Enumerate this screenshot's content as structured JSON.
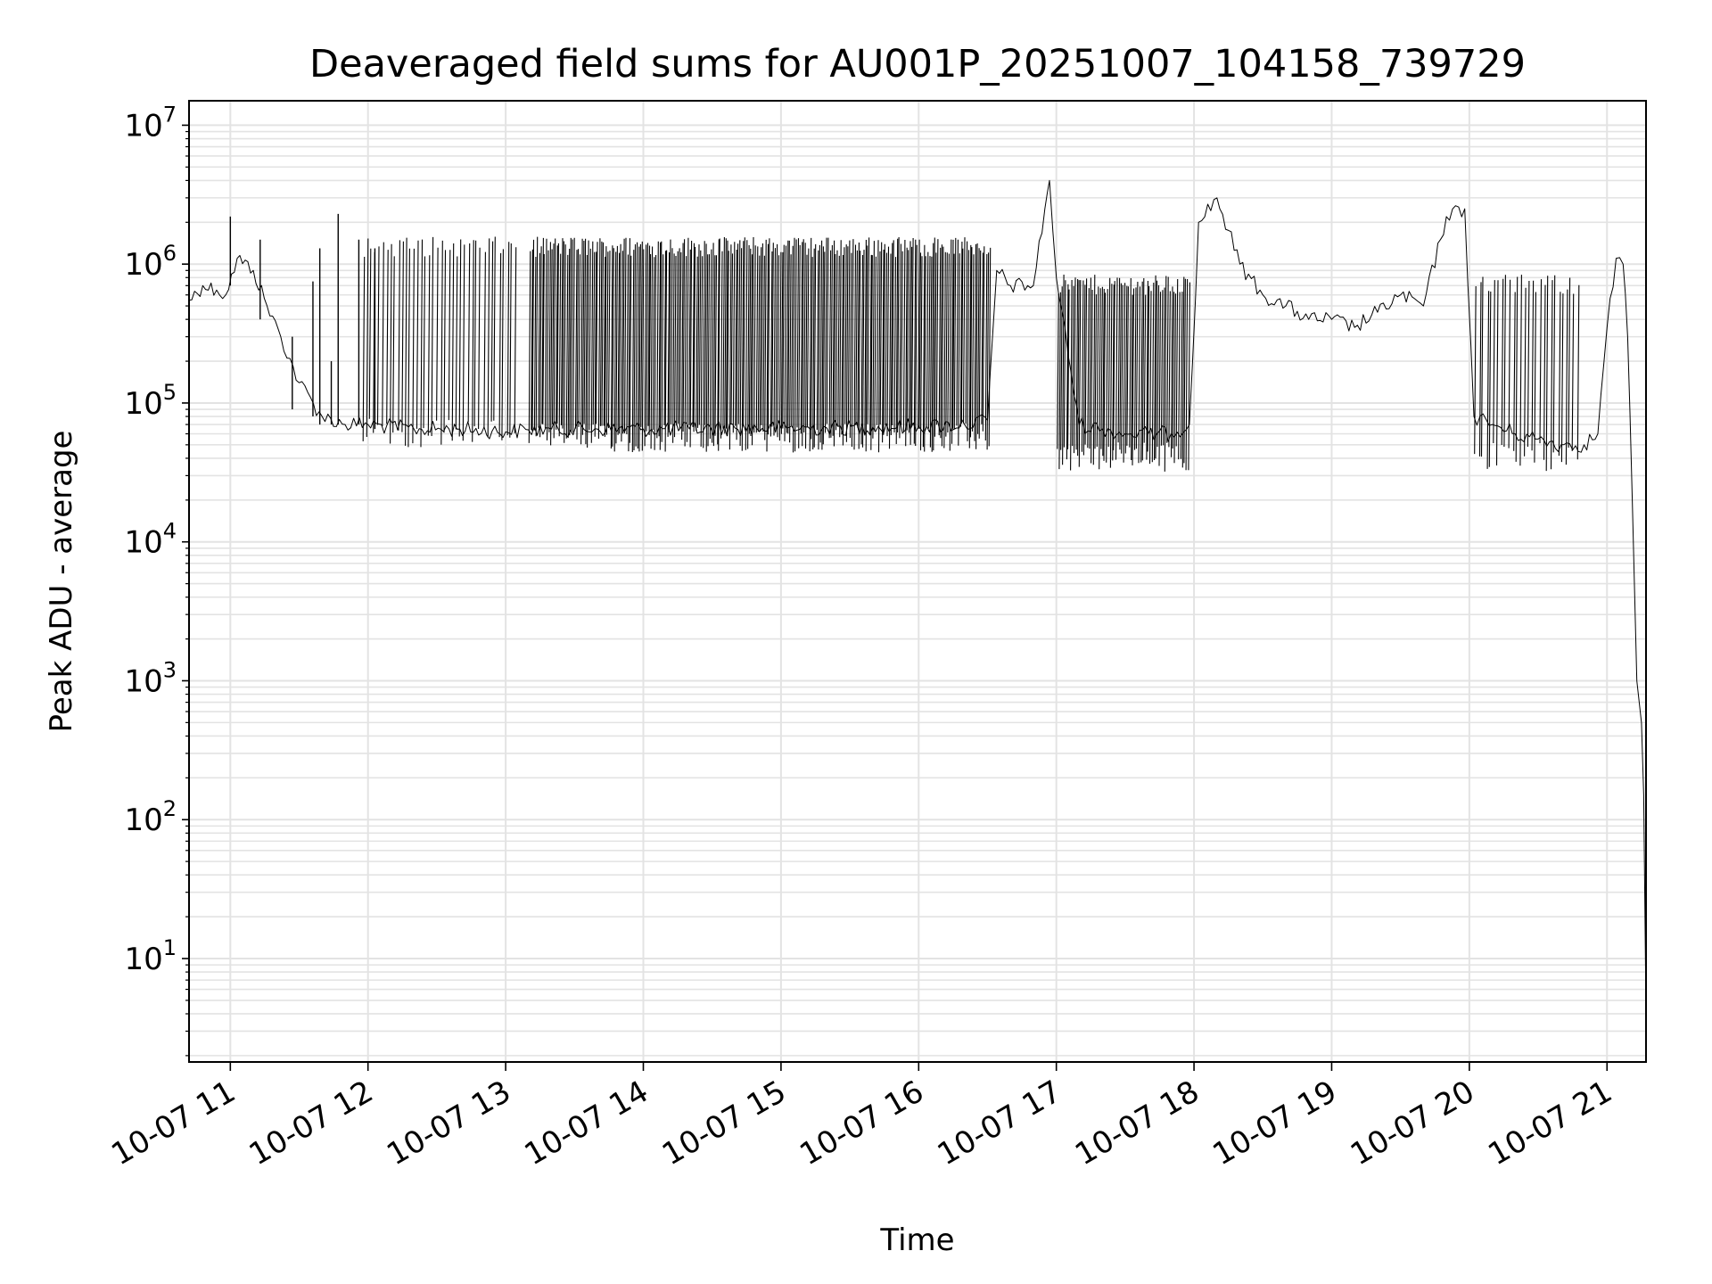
{
  "chart_data": {
    "type": "line",
    "title": "Deaveraged field sums for AU001P_20251007_104158_739729",
    "xlabel": "Time",
    "ylabel": "Peak ADU - average",
    "yscale": "log",
    "xlim": [
      "2025-10-07 10:42",
      "2025-10-07 21:17"
    ],
    "ylim": [
      1.8,
      15000000
    ],
    "grid": true,
    "grid_minor": true,
    "line_color": "#000000",
    "grid_color": "#e3e3e3",
    "x_ticks": [
      {
        "t": "2025-10-07 11:00",
        "label": "10-07 11"
      },
      {
        "t": "2025-10-07 12:00",
        "label": "10-07 12"
      },
      {
        "t": "2025-10-07 13:00",
        "label": "10-07 13"
      },
      {
        "t": "2025-10-07 14:00",
        "label": "10-07 14"
      },
      {
        "t": "2025-10-07 15:00",
        "label": "10-07 15"
      },
      {
        "t": "2025-10-07 16:00",
        "label": "10-07 16"
      },
      {
        "t": "2025-10-07 17:00",
        "label": "10-07 17"
      },
      {
        "t": "2025-10-07 18:00",
        "label": "10-07 18"
      },
      {
        "t": "2025-10-07 19:00",
        "label": "10-07 19"
      },
      {
        "t": "2025-10-07 20:00",
        "label": "10-07 20"
      },
      {
        "t": "2025-10-07 21:00",
        "label": "10-07 21"
      }
    ],
    "y_ticks": [
      {
        "value": 10,
        "base": "10",
        "exp": "1"
      },
      {
        "value": 100,
        "base": "10",
        "exp": "2"
      },
      {
        "value": 1000,
        "base": "10",
        "exp": "3"
      },
      {
        "value": 10000,
        "base": "10",
        "exp": "4"
      },
      {
        "value": 100000,
        "base": "10",
        "exp": "5"
      },
      {
        "value": 1000000,
        "base": "10",
        "exp": "6"
      },
      {
        "value": 10000000,
        "base": "10",
        "exp": "7"
      }
    ],
    "series": [
      {
        "x": [
          "2025-10-07 10:42",
          "2025-10-07 10:48",
          "2025-10-07 10:54",
          "2025-10-07 10:58",
          "2025-10-07 11:03",
          "2025-10-07 11:10",
          "2025-10-07 11:16",
          "2025-10-07 11:22",
          "2025-10-07 11:30",
          "2025-10-07 11:40",
          "2025-10-07 11:50",
          "2025-10-07 12:00",
          "2025-10-07 12:20",
          "2025-10-07 12:40",
          "2025-10-07 13:00",
          "2025-10-07 13:10",
          "2025-10-07 13:20",
          "2025-10-07 13:40",
          "2025-10-07 14:00",
          "2025-10-07 14:20",
          "2025-10-07 14:40",
          "2025-10-07 15:00",
          "2025-10-07 15:20",
          "2025-10-07 15:40",
          "2025-10-07 16:00",
          "2025-10-07 16:20",
          "2025-10-07 16:30",
          "2025-10-07 16:34",
          "2025-10-07 16:40",
          "2025-10-07 16:50",
          "2025-10-07 16:55",
          "2025-10-07 16:57",
          "2025-10-07 17:00",
          "2025-10-07 17:10",
          "2025-10-07 17:20",
          "2025-10-07 17:30",
          "2025-10-07 17:40",
          "2025-10-07 17:50",
          "2025-10-07 17:58",
          "2025-10-07 18:02",
          "2025-10-07 18:10",
          "2025-10-07 18:20",
          "2025-10-07 18:30",
          "2025-10-07 18:40",
          "2025-10-07 18:50",
          "2025-10-07 19:00",
          "2025-10-07 19:10",
          "2025-10-07 19:20",
          "2025-10-07 19:30",
          "2025-10-07 19:40",
          "2025-10-07 19:50",
          "2025-10-07 19:58",
          "2025-10-07 20:02",
          "2025-10-07 20:10",
          "2025-10-07 20:20",
          "2025-10-07 20:30",
          "2025-10-07 20:40",
          "2025-10-07 20:50",
          "2025-10-07 20:56",
          "2025-10-07 21:00",
          "2025-10-07 21:04",
          "2025-10-07 21:07",
          "2025-10-07 21:09",
          "2025-10-07 21:11",
          "2025-10-07 21:13",
          "2025-10-07 21:15",
          "2025-10-07 21:16",
          "2025-10-07 21:17"
        ],
        "values": [
          550000,
          700000,
          650000,
          600000,
          1100000,
          900000,
          500000,
          300000,
          140000,
          80000,
          70000,
          70000,
          65000,
          65000,
          62000,
          64000,
          65000,
          65000,
          65000,
          65000,
          66000,
          66000,
          66000,
          67000,
          68000,
          70000,
          75000,
          900000,
          700000,
          700000,
          2500000,
          4000000,
          800000,
          70000,
          65000,
          60000,
          60000,
          60000,
          70000,
          2000000,
          3000000,
          1000000,
          600000,
          500000,
          400000,
          400000,
          350000,
          450000,
          600000,
          500000,
          2200000,
          2500000,
          80000,
          70000,
          60000,
          55000,
          50000,
          50000,
          60000,
          350000,
          1100000,
          1000000,
          300000,
          20000,
          1000,
          500,
          150,
          4
        ]
      }
    ],
    "spikes": [
      {
        "t": "2025-10-07 11:00",
        "lo": 700000,
        "hi": 2200000
      },
      {
        "t": "2025-10-07 11:13",
        "lo": 400000,
        "hi": 1500000
      },
      {
        "t": "2025-10-07 11:27",
        "lo": 90000,
        "hi": 300000
      },
      {
        "t": "2025-10-07 11:36",
        "lo": 80000,
        "hi": 750000
      },
      {
        "t": "2025-10-07 11:39",
        "lo": 70000,
        "hi": 1300000
      },
      {
        "t": "2025-10-07 11:44",
        "lo": 70000,
        "hi": 200000
      },
      {
        "t": "2025-10-07 11:47",
        "lo": 70000,
        "hi": 2300000
      },
      {
        "t": "2025-10-07 11:56",
        "lo": 70000,
        "hi": 1500000
      },
      {
        "t": "2025-10-07 12:03",
        "lo": 65000,
        "hi": 1300000
      }
    ],
    "bands": [
      {
        "start": "2025-10-07 11:57",
        "end": "2025-10-07 13:05",
        "lo": 60000,
        "hi": 1500000,
        "n": 40
      },
      {
        "start": "2025-10-07 13:10",
        "end": "2025-10-07 16:31",
        "lo": 55000,
        "hi": 1500000,
        "n": 260
      },
      {
        "start": "2025-10-07 17:00",
        "end": "2025-10-07 17:58",
        "lo": 40000,
        "hi": 800000,
        "n": 70
      },
      {
        "start": "2025-10-07 20:02",
        "end": "2025-10-07 20:48",
        "lo": 40000,
        "hi": 800000,
        "n": 28
      }
    ]
  }
}
